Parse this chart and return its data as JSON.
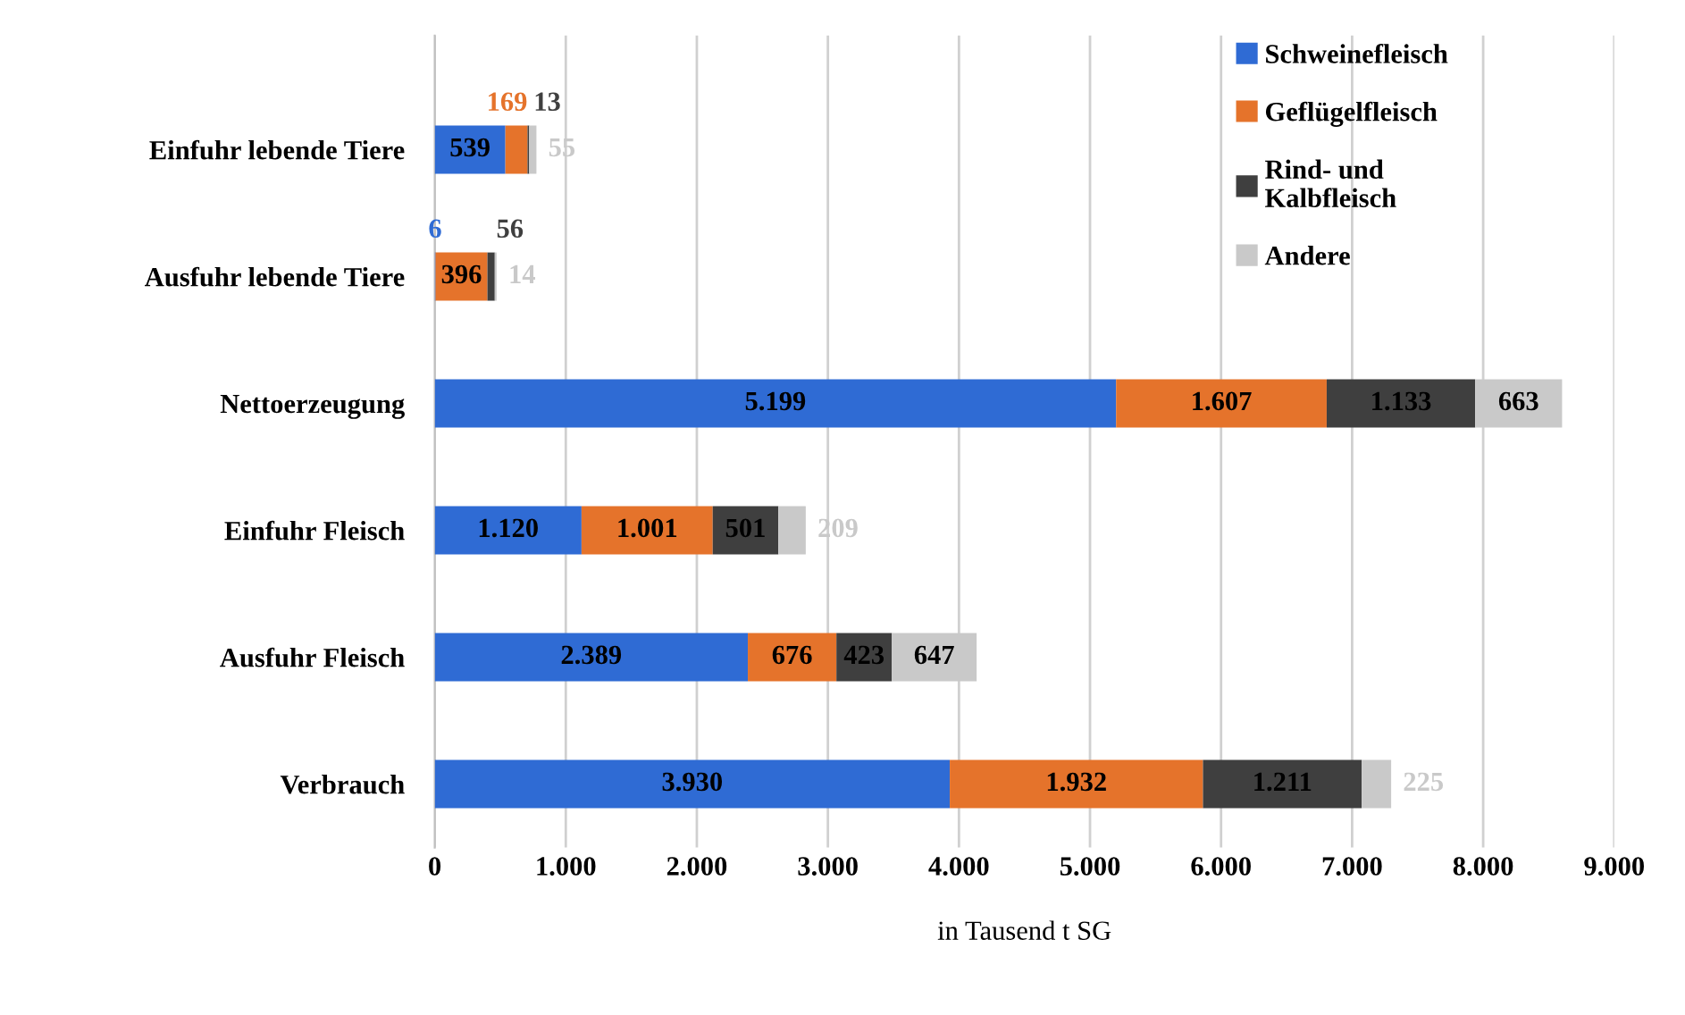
{
  "chart_data": {
    "type": "bar",
    "orientation": "horizontal",
    "stacked": true,
    "xlabel": "in Tausend t SG",
    "categories": [
      "Einfuhr lebende Tiere",
      "Ausfuhr lebende Tiere",
      "Nettoerzeugung",
      "Einfuhr Fleisch",
      "Ausfuhr Fleisch",
      "Verbrauch"
    ],
    "series": [
      {
        "name": "Schweinefleisch",
        "color": "#2f6bd4",
        "values": [
          539,
          6,
          5199,
          1120,
          2389,
          3930
        ],
        "value_labels": [
          "539",
          "6",
          "5.199",
          "1.120",
          "2.389",
          "3.930"
        ]
      },
      {
        "name": "Geflügelfleisch",
        "color": "#e5732b",
        "values": [
          169,
          396,
          1607,
          1001,
          676,
          1932
        ],
        "value_labels": [
          "169",
          "396",
          "1.607",
          "1.001",
          "676",
          "1.932"
        ]
      },
      {
        "name": "Rind- und\nKalbfleisch",
        "color": "#3f3f3f",
        "values": [
          13,
          56,
          1133,
          501,
          423,
          1211
        ],
        "value_labels": [
          "13",
          "56",
          "1.133",
          "501",
          "423",
          "1.211"
        ]
      },
      {
        "name": "Andere",
        "color": "#c9c9c9",
        "values": [
          55,
          14,
          663,
          209,
          647,
          225
        ],
        "value_labels": [
          "55",
          "14",
          "663",
          "209",
          "647",
          "225"
        ]
      }
    ],
    "xlim": [
      0,
      9000
    ],
    "xticks": [
      0,
      {
        "value": 1000,
        "label": "1.000"
      },
      {
        "value": 2000,
        "label": "2.000"
      },
      {
        "value": 3000,
        "label": "3.000"
      },
      {
        "value": 4000,
        "label": "4.000"
      },
      {
        "value": 5000,
        "label": "5.000"
      },
      {
        "value": 6000,
        "label": "6.000"
      },
      {
        "value": 7000,
        "label": "7.000"
      },
      {
        "value": 8000,
        "label": "8.000"
      },
      {
        "value": 9000,
        "label": "9.000"
      }
    ],
    "grid": "x",
    "legend": "top right"
  }
}
